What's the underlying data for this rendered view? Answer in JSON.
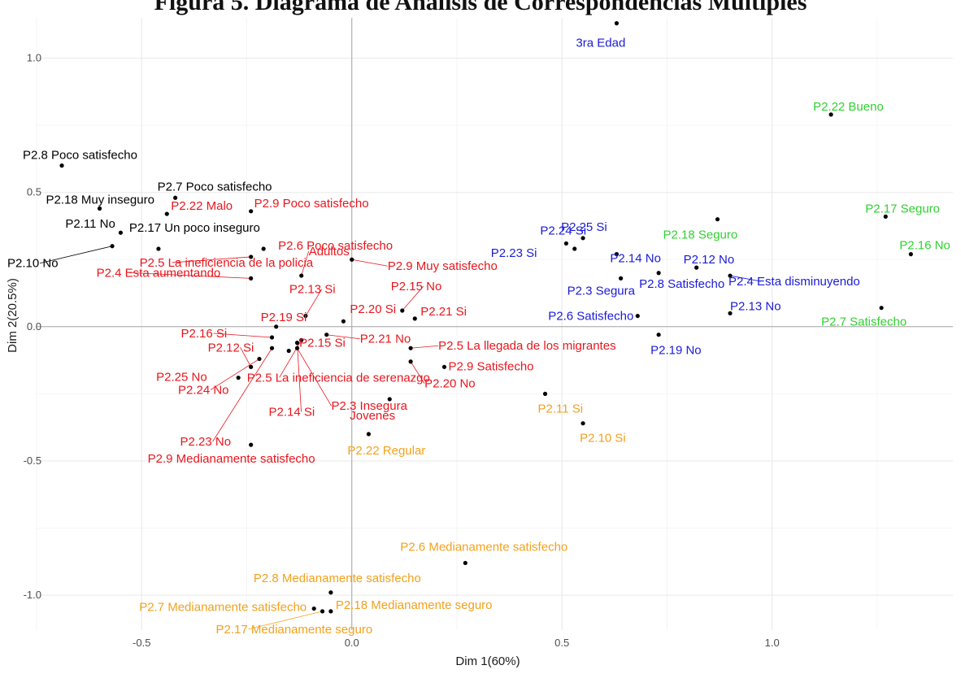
{
  "chart_data": {
    "type": "scatter",
    "title": "Figura 5. Diagrama de Análisis de Correspondencias Múltiples",
    "xlabel": "Dim 1(60%)",
    "ylabel": "Dim 2(20.5%)",
    "xlim": [
      -0.75,
      1.43
    ],
    "ylim": [
      -1.13,
      1.15
    ],
    "x_ticks": [
      -0.5,
      0.0,
      0.5,
      1.0
    ],
    "x_tick_labels": [
      "-0.5",
      "0.0",
      "0.5",
      "1.0"
    ],
    "y_ticks": [
      -1.0,
      -0.5,
      0.0,
      0.5,
      1.0
    ],
    "y_tick_labels": [
      "-1.0",
      "-0.5",
      "0.0",
      "0.5",
      "1.0"
    ],
    "grid": true,
    "colors": {
      "black": "#000000",
      "red": "#e8161d",
      "blue": "#1b1bd6",
      "green": "#2fd12f",
      "orange": "#f3a11b",
      "point": "#000000",
      "zero_line": "#a6a6a6",
      "grid_major": "#ebebeb",
      "grid_minor": "#f5f5f5"
    },
    "series": [
      {
        "color_key": "black",
        "points": [
          {
            "label": "P2.8 Poco satisfecho",
            "x": -0.69,
            "y": 0.6
          },
          {
            "label": "P2.7 Poco satisfecho",
            "x": -0.42,
            "y": 0.48
          },
          {
            "label": "P2.18 Muy inseguro",
            "x": -0.6,
            "y": 0.44
          },
          {
            "label": "P2.11 No",
            "x": -0.55,
            "y": 0.35
          },
          {
            "label": "P2.17 Un poco inseguro",
            "x": -0.46,
            "y": 0.29
          },
          {
            "label": "P2.10 No",
            "x": -0.57,
            "y": 0.3
          }
        ]
      },
      {
        "color_key": "red",
        "points": [
          {
            "label": "P2.22 Malo",
            "x": -0.44,
            "y": 0.42
          },
          {
            "label": "P2.9 Poco satisfecho",
            "x": -0.24,
            "y": 0.43
          },
          {
            "label": "P2.6 Poco satisfecho",
            "x": -0.21,
            "y": 0.29
          },
          {
            "label": "P2.9 Muy satisfecho",
            "x": 0.0,
            "y": 0.25
          },
          {
            "label": "P2.5 La ineficiencia de la policia",
            "x": -0.24,
            "y": 0.26
          },
          {
            "label": "Adultos",
            "x": -0.12,
            "y": 0.19
          },
          {
            "label": "P2.4 Esta aumentando",
            "x": -0.24,
            "y": 0.18
          },
          {
            "label": "P2.15 No",
            "x": 0.12,
            "y": 0.06
          },
          {
            "label": "P2.13 Si",
            "x": -0.11,
            "y": 0.04
          },
          {
            "label": "P2.20 Si",
            "x": -0.02,
            "y": 0.02
          },
          {
            "label": "P2.21 Si",
            "x": 0.15,
            "y": 0.03
          },
          {
            "label": "P2.19 Si",
            "x": -0.18,
            "y": 0.0
          },
          {
            "label": "P2.16 Si",
            "x": -0.19,
            "y": -0.04
          },
          {
            "label": "P2.21 No",
            "x": -0.06,
            "y": -0.03
          },
          {
            "label": "P2.5 La llegada de los migrantes",
            "x": 0.14,
            "y": -0.08
          },
          {
            "label": "P2.12 Si",
            "x": -0.24,
            "y": -0.15
          },
          {
            "label": "P2.5 La ineficiencia de serenazgo",
            "x": -0.12,
            "y": -0.05
          },
          {
            "label": "P2.9 Satisfecho",
            "x": 0.22,
            "y": -0.15
          },
          {
            "label": "P2.25 No",
            "x": -0.27,
            "y": -0.19
          },
          {
            "label": "P2.15 Si",
            "x": -0.15,
            "y": -0.09
          },
          {
            "label": "P2.3 Insegura",
            "x": -0.13,
            "y": -0.08
          },
          {
            "label": "P2.20 No",
            "x": 0.14,
            "y": -0.13
          },
          {
            "label": "P2.24 No",
            "x": -0.22,
            "y": -0.12
          },
          {
            "label": "P2.14 Si",
            "x": -0.13,
            "y": -0.06
          },
          {
            "label": "Jovenes",
            "x": 0.09,
            "y": -0.27
          },
          {
            "label": "P2.23 No",
            "x": -0.19,
            "y": -0.08
          },
          {
            "label": "P2.9 Medianamente satisfecho",
            "x": -0.24,
            "y": -0.44
          }
        ]
      },
      {
        "color_key": "blue",
        "points": [
          {
            "label": "3ra Edad",
            "x": 0.63,
            "y": 1.13
          },
          {
            "label": "P2.24 Si",
            "x": 0.51,
            "y": 0.31
          },
          {
            "label": "P2.25 Si",
            "x": 0.55,
            "y": 0.33
          },
          {
            "label": "P2.23 Si",
            "x": 0.53,
            "y": 0.29
          },
          {
            "label": "P2.14 No",
            "x": 0.63,
            "y": 0.27
          },
          {
            "label": "P2.12 No",
            "x": 0.82,
            "y": 0.22
          },
          {
            "label": "P2.3 Segura",
            "x": 0.64,
            "y": 0.18
          },
          {
            "label": "P2.8 Satisfecho",
            "x": 0.73,
            "y": 0.2
          },
          {
            "label": "P2.4 Esta disminuyendo",
            "x": 0.9,
            "y": 0.19
          },
          {
            "label": "P2.13 No",
            "x": 0.9,
            "y": 0.05
          },
          {
            "label": "P2.6 Satisfecho",
            "x": 0.68,
            "y": 0.04
          },
          {
            "label": "P2.19 No",
            "x": 0.73,
            "y": -0.03
          }
        ]
      },
      {
        "color_key": "green",
        "points": [
          {
            "label": "P2.22 Bueno",
            "x": 1.14,
            "y": 0.79
          },
          {
            "label": "P2.17 Seguro",
            "x": 1.27,
            "y": 0.41
          },
          {
            "label": "P2.18 Seguro",
            "x": 0.87,
            "y": 0.4
          },
          {
            "label": "P2.16 No",
            "x": 1.33,
            "y": 0.27
          },
          {
            "label": "P2.7 Satisfecho",
            "x": 1.26,
            "y": 0.07
          }
        ]
      },
      {
        "color_key": "orange",
        "points": [
          {
            "label": "P2.11 Si",
            "x": 0.46,
            "y": -0.25
          },
          {
            "label": "P2.10 Si",
            "x": 0.55,
            "y": -0.36
          },
          {
            "label": "P2.22 Regular",
            "x": 0.04,
            "y": -0.4
          },
          {
            "label": "P2.6 Medianamente satisfecho",
            "x": 0.27,
            "y": -0.88
          },
          {
            "label": "P2.8 Medianamente satisfecho",
            "x": -0.05,
            "y": -0.99
          },
          {
            "label": "P2.7 Medianamente satisfecho",
            "x": -0.09,
            "y": -1.05
          },
          {
            "label": "P2.18 Medianamente seguro",
            "x": -0.05,
            "y": -1.06
          },
          {
            "label": "P2.17 Medianamente seguro",
            "x": -0.07,
            "y": -1.06
          }
        ]
      }
    ]
  }
}
